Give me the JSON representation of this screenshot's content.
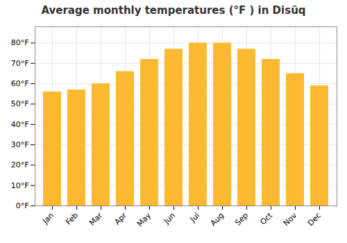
{
  "chart_data": {
    "type": "bar",
    "title": "Average monthly temperatures (°F ) in Disūq",
    "categories": [
      "Jan",
      "Feb",
      "Mar",
      "Apr",
      "May",
      "Jun",
      "Jul",
      "Aug",
      "Sep",
      "Oct",
      "Nov",
      "Dec"
    ],
    "values": [
      56,
      57,
      60,
      66,
      72,
      77,
      80,
      80,
      77,
      72,
      65,
      59
    ],
    "color": "#FDB931",
    "ylim": [
      0,
      88
    ],
    "yticks": [
      {
        "value": 0,
        "label": "0°F"
      },
      {
        "value": 10,
        "label": "10°F"
      },
      {
        "value": 20,
        "label": "20°F"
      },
      {
        "value": 30,
        "label": "30°F"
      },
      {
        "value": 40,
        "label": "40°F"
      },
      {
        "value": 50,
        "label": "50°F"
      },
      {
        "value": 60,
        "label": "60°F"
      },
      {
        "value": 70,
        "label": "70°F"
      },
      {
        "value": 80,
        "label": "80°F"
      }
    ],
    "grid": true
  }
}
